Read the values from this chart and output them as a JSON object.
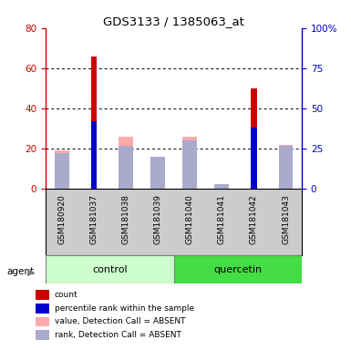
{
  "title": "GDS3133 / 1385063_at",
  "samples": [
    "GSM180920",
    "GSM181037",
    "GSM181038",
    "GSM181039",
    "GSM181040",
    "GSM181041",
    "GSM181042",
    "GSM181043"
  ],
  "groups": [
    "control",
    "control",
    "control",
    "control",
    "quercetin",
    "quercetin",
    "quercetin",
    "quercetin"
  ],
  "count_values": [
    0,
    66,
    0,
    0,
    0,
    0,
    50,
    0
  ],
  "percentile_rank_values": [
    0,
    42,
    0,
    0,
    0,
    0,
    38,
    0
  ],
  "value_absent": [
    19,
    0,
    26,
    16,
    26,
    0,
    0,
    22
  ],
  "rank_absent": [
    22,
    0,
    27,
    20,
    30,
    3,
    0,
    27
  ],
  "has_count": [
    false,
    true,
    false,
    false,
    false,
    false,
    true,
    false
  ],
  "has_percentile": [
    false,
    true,
    false,
    false,
    false,
    false,
    true,
    false
  ],
  "has_value_absent": [
    true,
    false,
    true,
    true,
    true,
    false,
    false,
    true
  ],
  "has_rank_absent": [
    true,
    false,
    true,
    true,
    true,
    true,
    false,
    true
  ],
  "ylim_left": [
    0,
    80
  ],
  "ylim_right": [
    0,
    100
  ],
  "yticks_left": [
    0,
    20,
    40,
    60,
    80
  ],
  "yticks_right": [
    0,
    25,
    50,
    75,
    100
  ],
  "ytick_right_labels": [
    "0",
    "25",
    "50",
    "75",
    "100%"
  ],
  "color_count": "#cc0000",
  "color_percentile": "#0000cc",
  "color_value_absent": "#ffaaaa",
  "color_rank_absent": "#aaaacc",
  "color_control_bg": "#ccffcc",
  "color_quercetin_bg": "#44dd44",
  "color_sample_bg": "#cccccc",
  "legend_items": [
    "count",
    "percentile rank within the sample",
    "value, Detection Call = ABSENT",
    "rank, Detection Call = ABSENT"
  ],
  "legend_colors": [
    "#cc0000",
    "#0000cc",
    "#ffaaaa",
    "#aaaacc"
  ]
}
